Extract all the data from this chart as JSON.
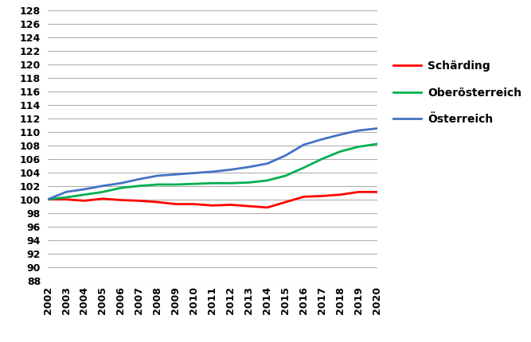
{
  "years": [
    2002,
    2003,
    2004,
    2005,
    2006,
    2007,
    2008,
    2009,
    2010,
    2011,
    2012,
    2013,
    2014,
    2015,
    2016,
    2017,
    2018,
    2019,
    2020
  ],
  "schaerding": [
    100.0,
    100.0,
    99.8,
    100.1,
    99.9,
    99.8,
    99.6,
    99.3,
    99.3,
    99.1,
    99.2,
    99.0,
    98.8,
    99.6,
    100.4,
    100.5,
    100.7,
    101.1,
    101.1
  ],
  "oberoesterreich": [
    100.0,
    100.3,
    100.7,
    101.1,
    101.7,
    102.0,
    102.2,
    102.2,
    102.3,
    102.4,
    102.4,
    102.5,
    102.8,
    103.5,
    104.7,
    106.0,
    107.1,
    107.8,
    108.2
  ],
  "oesterreich": [
    100.0,
    101.1,
    101.5,
    102.0,
    102.4,
    103.0,
    103.5,
    103.7,
    103.9,
    104.1,
    104.4,
    104.8,
    105.3,
    106.5,
    108.1,
    108.9,
    109.6,
    110.2,
    110.5
  ],
  "schaerding_color": "#ff0000",
  "oberoesterreich_color": "#00b050",
  "oesterreich_color": "#4472c4",
  "ylim": [
    88,
    128
  ],
  "ytick_step": 2,
  "background_color": "#ffffff",
  "grid_color": "#b0b0b0",
  "legend_labels": [
    "Schärding",
    "Oberösterreich",
    "Österreich"
  ]
}
